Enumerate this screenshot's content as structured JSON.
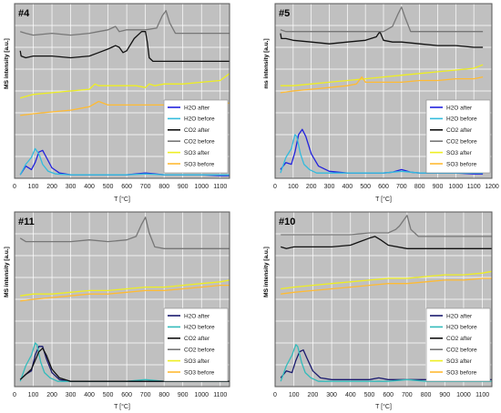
{
  "colors": {
    "plot_bg": "#c0c0c0",
    "grid": "#ffffff",
    "border": "#555555",
    "legend_bg": "#ffffff"
  },
  "chart_data": [
    {
      "type": "line",
      "title": "#4",
      "ylabel": "MS intensity [a.u.]",
      "xlabel": "T [°C]",
      "xlim": [
        0,
        1150
      ],
      "xticks": [
        0,
        100,
        200,
        300,
        400,
        500,
        600,
        700,
        800,
        900,
        1000,
        1100
      ],
      "ylim": [
        0,
        100
      ],
      "grid": true,
      "legend_position": "bottom-right",
      "series": [
        {
          "name": "H2O after",
          "color": "#2222dd",
          "x": [
            30,
            60,
            90,
            110,
            130,
            150,
            170,
            200,
            240,
            300,
            400,
            500,
            600,
            700,
            800,
            900,
            1000,
            1100,
            1150
          ],
          "y": [
            2,
            7,
            5,
            9,
            15,
            16,
            12,
            6,
            3,
            2,
            2,
            2,
            2,
            3,
            2,
            2,
            2,
            1.5,
            1.5
          ]
        },
        {
          "name": "H2O before",
          "color": "#33bbdd",
          "x": [
            30,
            60,
            90,
            110,
            130,
            150,
            180,
            220,
            300,
            400,
            500,
            600,
            700,
            800,
            900,
            1000,
            1100,
            1150
          ],
          "y": [
            2,
            8,
            12,
            17,
            14,
            8,
            4,
            2.5,
            2,
            2,
            2,
            2,
            2.5,
            2,
            2,
            2,
            2,
            2
          ]
        },
        {
          "name": "CO2 after",
          "color": "#111111",
          "x": [
            30,
            35,
            60,
            100,
            200,
            300,
            400,
            450,
            500,
            540,
            560,
            580,
            600,
            640,
            680,
            700,
            710,
            720,
            740,
            800,
            900,
            1000,
            1100,
            1150
          ],
          "y": [
            73,
            70,
            69,
            70,
            70,
            69,
            70,
            72,
            74,
            76,
            75,
            72,
            73,
            80,
            84,
            84,
            78,
            69,
            67,
            67,
            67,
            67,
            67,
            67
          ]
        },
        {
          "name": "CO2 before",
          "color": "#777777",
          "x": [
            30,
            60,
            100,
            200,
            300,
            400,
            450,
            500,
            540,
            560,
            600,
            700,
            760,
            790,
            810,
            830,
            860,
            900,
            1000,
            1100,
            1150
          ],
          "y": [
            84,
            83,
            82,
            83,
            82,
            83,
            84,
            85,
            87,
            84,
            85,
            85,
            86,
            93,
            96,
            89,
            83,
            83,
            83,
            83,
            83
          ]
        },
        {
          "name": "SO3 after",
          "color": "#eeee22",
          "x": [
            30,
            100,
            200,
            300,
            400,
            430,
            450,
            500,
            600,
            650,
            700,
            720,
            750,
            800,
            900,
            1000,
            1100,
            1150
          ],
          "y": [
            46,
            48,
            49,
            50,
            51,
            54,
            53,
            53,
            53,
            53,
            52,
            54,
            53,
            54,
            54,
            55,
            56,
            60
          ]
        },
        {
          "name": "SO3 before",
          "color": "#ffbb33",
          "x": [
            30,
            100,
            200,
            300,
            400,
            450,
            500,
            600,
            700,
            800,
            900,
            1000,
            1100,
            1150
          ],
          "y": [
            36,
            37,
            38,
            39,
            41,
            44,
            42,
            42,
            42,
            42,
            42,
            42,
            43,
            43
          ]
        }
      ]
    },
    {
      "type": "line",
      "title": "#5",
      "ylabel": "ms intensity [a.u.]",
      "xlabel": "T [°C]",
      "xlim": [
        0,
        1200
      ],
      "xticks": [
        0,
        100,
        200,
        300,
        400,
        500,
        600,
        700,
        800,
        900,
        1000,
        1100,
        1200
      ],
      "ylim": [
        0,
        100
      ],
      "grid": true,
      "legend_position": "bottom-right",
      "series": [
        {
          "name": "H2O after",
          "color": "#2222dd",
          "x": [
            30,
            60,
            90,
            110,
            130,
            150,
            170,
            200,
            240,
            300,
            400,
            500,
            600,
            650,
            700,
            750,
            800,
            900,
            1000,
            1100,
            1150
          ],
          "y": [
            5,
            9,
            8,
            15,
            25,
            28,
            24,
            14,
            7,
            4,
            3,
            3,
            3,
            3.5,
            5,
            3.5,
            3,
            3,
            3,
            2.5,
            2.5
          ]
        },
        {
          "name": "H2O before",
          "color": "#33bbdd",
          "x": [
            30,
            60,
            90,
            110,
            120,
            140,
            160,
            190,
            230,
            300,
            400,
            500,
            600,
            700,
            800,
            900,
            1000,
            1100,
            1150
          ],
          "y": [
            3,
            12,
            17,
            25,
            24,
            14,
            8,
            5,
            3,
            3,
            3,
            3,
            3,
            4,
            3,
            3,
            3,
            3,
            3
          ]
        },
        {
          "name": "CO2 after",
          "color": "#111111",
          "x": [
            30,
            35,
            60,
            100,
            200,
            300,
            400,
            500,
            560,
            580,
            600,
            650,
            700,
            800,
            900,
            1000,
            1100,
            1150
          ],
          "y": [
            83,
            80,
            80,
            79,
            78,
            77,
            78,
            79,
            81,
            84,
            79,
            78,
            78,
            77,
            76,
            76,
            75,
            75
          ]
        },
        {
          "name": "CO2 before",
          "color": "#777777",
          "x": [
            30,
            60,
            100,
            200,
            300,
            400,
            500,
            600,
            650,
            680,
            700,
            720,
            750,
            800,
            900,
            1000,
            1100,
            1150
          ],
          "y": [
            85,
            84,
            84,
            84,
            84,
            84,
            84,
            84,
            87,
            94,
            98,
            92,
            84,
            84,
            84,
            84,
            84,
            84
          ]
        },
        {
          "name": "SO3 after",
          "color": "#eeee22",
          "x": [
            30,
            100,
            200,
            300,
            400,
            500,
            600,
            700,
            800,
            900,
            1000,
            1100,
            1150
          ],
          "y": [
            53,
            53,
            54,
            55,
            56,
            57,
            58,
            59,
            60,
            61,
            62,
            63,
            65
          ]
        },
        {
          "name": "SO3 before",
          "color": "#ffbb33",
          "x": [
            30,
            100,
            200,
            300,
            400,
            450,
            480,
            500,
            600,
            700,
            800,
            900,
            1000,
            1100,
            1150
          ],
          "y": [
            49,
            50,
            51,
            52,
            53,
            54,
            58,
            55,
            55,
            55,
            56,
            56,
            57,
            57,
            58
          ]
        }
      ]
    },
    {
      "type": "line",
      "title": "#11",
      "ylabel": "MS intensity [a.u.]",
      "xlabel": "T [°C]",
      "xlim": [
        0,
        1150
      ],
      "xticks": [
        0,
        100,
        200,
        300,
        400,
        500,
        600,
        700,
        800,
        900,
        1000,
        1100
      ],
      "ylim": [
        0,
        100
      ],
      "grid": true,
      "legend_position": "bottom-right",
      "series": [
        {
          "name": "H2O after",
          "color": "#1a1a6e",
          "x": [
            30,
            60,
            90,
            110,
            130,
            150,
            170,
            200,
            240,
            300,
            400,
            500,
            600,
            700,
            800,
            900,
            1000,
            1100,
            1150
          ],
          "y": [
            4,
            7,
            9,
            18,
            23,
            23,
            16,
            8,
            4,
            3,
            3,
            3,
            3,
            3,
            3,
            3,
            3,
            3,
            3
          ]
        },
        {
          "name": "H2O before",
          "color": "#33bbbb",
          "x": [
            30,
            60,
            90,
            110,
            120,
            140,
            160,
            190,
            230,
            300,
            400,
            500,
            600,
            700,
            800,
            900,
            1000,
            1100,
            1150
          ],
          "y": [
            3,
            12,
            18,
            25,
            24,
            14,
            8,
            5,
            3,
            3,
            3,
            3,
            3,
            4,
            3,
            3,
            3,
            3,
            3
          ]
        },
        {
          "name": "CO2 after",
          "color": "#111111",
          "x": [
            30,
            60,
            90,
            110,
            130,
            150,
            170,
            200,
            240,
            300,
            400,
            500,
            600,
            700,
            800,
            900,
            1000,
            1100,
            1150
          ],
          "y": [
            4,
            7,
            10,
            15,
            20,
            22,
            18,
            10,
            5,
            3,
            3,
            3,
            3,
            3,
            3,
            3,
            3,
            3,
            3
          ]
        },
        {
          "name": "CO2 before",
          "color": "#777777",
          "x": [
            30,
            60,
            100,
            200,
            300,
            400,
            500,
            600,
            650,
            680,
            700,
            720,
            750,
            800,
            900,
            1000,
            1100,
            1150
          ],
          "y": [
            85,
            83,
            83,
            83,
            83,
            84,
            83,
            84,
            86,
            93,
            97,
            88,
            80,
            79,
            79,
            79,
            79,
            79
          ]
        },
        {
          "name": "SO3 after",
          "color": "#eeee22",
          "x": [
            30,
            100,
            200,
            300,
            400,
            500,
            600,
            700,
            800,
            900,
            1000,
            1100,
            1150
          ],
          "y": [
            52,
            53,
            53,
            54,
            55,
            55,
            56,
            57,
            57,
            58,
            59,
            60,
            61
          ]
        },
        {
          "name": "SO3 before",
          "color": "#ffbb33",
          "x": [
            30,
            100,
            200,
            300,
            400,
            500,
            600,
            700,
            800,
            900,
            1000,
            1100,
            1150
          ],
          "y": [
            49,
            50,
            51,
            52,
            53,
            53,
            54,
            55,
            55,
            56,
            57,
            58,
            58
          ]
        }
      ]
    },
    {
      "type": "line",
      "title": "#10",
      "ylabel": "MS intensity [a.u.]",
      "xlabel": "T [°C]",
      "xlim": [
        0,
        1150
      ],
      "xticks": [
        0,
        100,
        200,
        300,
        400,
        500,
        600,
        700,
        800,
        900,
        1000,
        1100
      ],
      "ylim": [
        0,
        100
      ],
      "grid": true,
      "legend_position": "bottom-right",
      "series": [
        {
          "name": "H2O after",
          "color": "#1a1a6e",
          "x": [
            30,
            60,
            90,
            110,
            130,
            150,
            170,
            200,
            240,
            300,
            400,
            500,
            550,
            600,
            700,
            800,
            900,
            1000,
            1100,
            1150
          ],
          "y": [
            5,
            9,
            8,
            15,
            20,
            21,
            16,
            9,
            5,
            4,
            4,
            4,
            5,
            4,
            4,
            4,
            4,
            4,
            4,
            4
          ]
        },
        {
          "name": "H2O before",
          "color": "#33bbbb",
          "x": [
            30,
            60,
            90,
            110,
            120,
            140,
            160,
            190,
            230,
            300,
            400,
            500,
            600,
            700,
            800,
            900,
            1000,
            1100,
            1150
          ],
          "y": [
            3,
            12,
            18,
            24,
            23,
            14,
            8,
            5,
            3,
            3,
            3,
            3,
            3,
            4,
            3,
            3,
            3,
            3,
            3
          ]
        },
        {
          "name": "CO2 after",
          "color": "#111111",
          "x": [
            30,
            60,
            100,
            200,
            300,
            400,
            450,
            500,
            530,
            560,
            600,
            700,
            800,
            900,
            1000,
            1100,
            1150
          ],
          "y": [
            80,
            79,
            80,
            80,
            80,
            81,
            83,
            85,
            86,
            84,
            81,
            79,
            79,
            79,
            79,
            79,
            79
          ]
        },
        {
          "name": "CO2 before",
          "color": "#777777",
          "x": [
            30,
            100,
            200,
            300,
            400,
            500,
            550,
            600,
            640,
            660,
            680,
            700,
            720,
            760,
            800,
            900,
            1000,
            1100,
            1150
          ],
          "y": [
            87,
            87,
            87,
            87,
            87,
            88,
            88,
            88,
            90,
            92,
            95,
            98,
            90,
            86,
            86,
            86,
            86,
            86,
            86
          ]
        },
        {
          "name": "SO3 after",
          "color": "#eeee22",
          "x": [
            30,
            100,
            200,
            300,
            400,
            500,
            600,
            700,
            800,
            900,
            1000,
            1100,
            1150
          ],
          "y": [
            56,
            57,
            58,
            59,
            60,
            61,
            62,
            62,
            63,
            64,
            64,
            65,
            66
          ]
        },
        {
          "name": "SO3 before",
          "color": "#ffbb33",
          "x": [
            30,
            100,
            200,
            300,
            400,
            500,
            600,
            700,
            800,
            900,
            1000,
            1100,
            1150
          ],
          "y": [
            53,
            54,
            55,
            56,
            57,
            58,
            59,
            59,
            60,
            61,
            61,
            62,
            62
          ]
        }
      ]
    }
  ]
}
